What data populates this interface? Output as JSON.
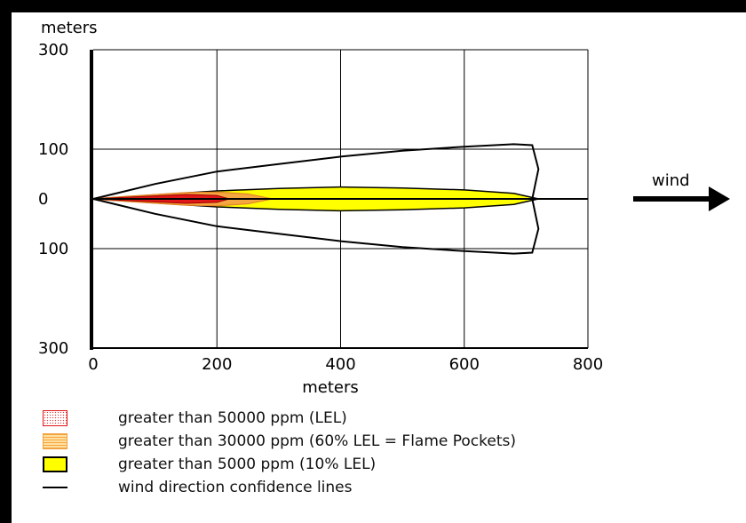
{
  "chart_data": {
    "type": "area",
    "title": "",
    "xlabel": "meters",
    "ylabel": "meters",
    "xlim": [
      0,
      800
    ],
    "ylim": [
      -300,
      300
    ],
    "x_ticks": [
      "0",
      "200",
      "400",
      "600",
      "800"
    ],
    "y_ticks": [
      "300",
      "100",
      "0",
      "100",
      "300"
    ],
    "grid": true,
    "wind_label": "wind",
    "series": [
      {
        "name": "greater than 50000 ppm (LEL)",
        "color": "#e01818",
        "x": [
          0,
          50,
          100,
          150,
          200,
          220
        ],
        "half_width": [
          0,
          3,
          6,
          9,
          7,
          0
        ]
      },
      {
        "name": "greater than 30000 ppm (60% LEL = Flame Pockets)",
        "color": "#f4a640",
        "x": [
          0,
          50,
          100,
          150,
          200,
          250,
          290
        ],
        "half_width": [
          0,
          5,
          9,
          13,
          14,
          10,
          0
        ]
      },
      {
        "name": "greater than 5000 ppm (10% LEL)",
        "color": "#ffff00",
        "x": [
          0,
          100,
          200,
          300,
          400,
          500,
          600,
          680,
          720
        ],
        "half_width": [
          0,
          8,
          16,
          21,
          24,
          22,
          18,
          11,
          0
        ]
      },
      {
        "name": "wind direction confidence lines",
        "color": "#000000",
        "x": [
          0,
          100,
          200,
          300,
          400,
          500,
          600,
          680,
          710,
          720,
          710
        ],
        "half_width": [
          0,
          30,
          55,
          70,
          85,
          97,
          105,
          110,
          108,
          60,
          0
        ]
      }
    ]
  }
}
